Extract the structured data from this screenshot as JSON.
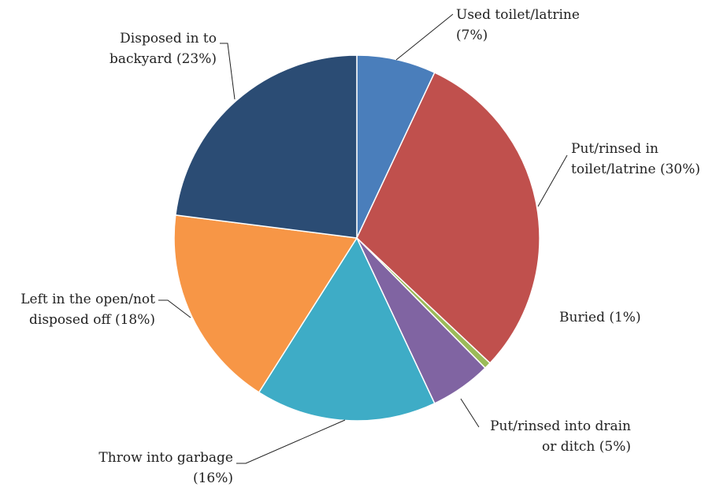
{
  "chart_data": {
    "type": "pie",
    "title": "",
    "slices": [
      {
        "label_lines": [
          "Used toilet/latrine",
          "(7%)"
        ],
        "value": 7,
        "color": "#4a7ebb"
      },
      {
        "label_lines": [
          "Put/rinsed in",
          "toilet/latrine (30%)"
        ],
        "value": 30,
        "color": "#c0504d"
      },
      {
        "label_lines": [
          "Buried (1%)"
        ],
        "value": 0.6,
        "color": "#9bbb59"
      },
      {
        "label_lines": [
          "Put/rinsed into drain",
          "or ditch (5%)"
        ],
        "value": 5.4,
        "color": "#8064a2"
      },
      {
        "label_lines": [
          "Throw into garbage",
          "(16%)"
        ],
        "value": 16,
        "color": "#3eacc6"
      },
      {
        "label_lines": [
          "Left in the open/not",
          "disposed off (18%)"
        ],
        "value": 18,
        "color": "#f79646"
      },
      {
        "label_lines": [
          "Disposed in to",
          "backyard (23%)"
        ],
        "value": 23,
        "color": "#2b4c74"
      }
    ]
  }
}
